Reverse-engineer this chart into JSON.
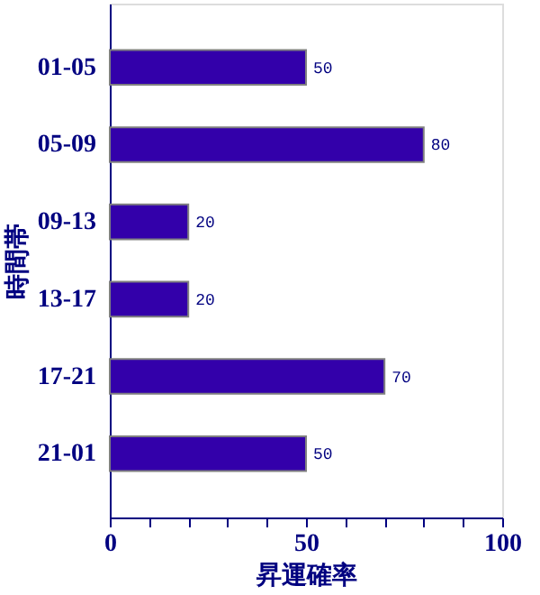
{
  "chart_data": {
    "type": "bar",
    "orientation": "horizontal",
    "xlabel": "昇運確率",
    "ylabel": "時間帯",
    "categories": [
      "01-05",
      "05-09",
      "09-13",
      "13-17",
      "17-21",
      "21-01"
    ],
    "values": [
      50,
      80,
      20,
      20,
      70,
      50
    ],
    "color": "#3300aa",
    "xlim": [
      0,
      100
    ],
    "xticks": [
      0,
      {
        "value": 10,
        "label": null
      },
      {
        "value": 20,
        "label": null
      },
      {
        "value": 30,
        "label": null
      },
      {
        "value": 40,
        "label": null
      },
      50,
      {
        "value": 60,
        "label": null
      },
      {
        "value": 70,
        "label": null
      },
      {
        "value": 80,
        "label": null
      },
      {
        "value": 90,
        "label": null
      },
      100
    ],
    "grid": false,
    "data_labels": true
  }
}
